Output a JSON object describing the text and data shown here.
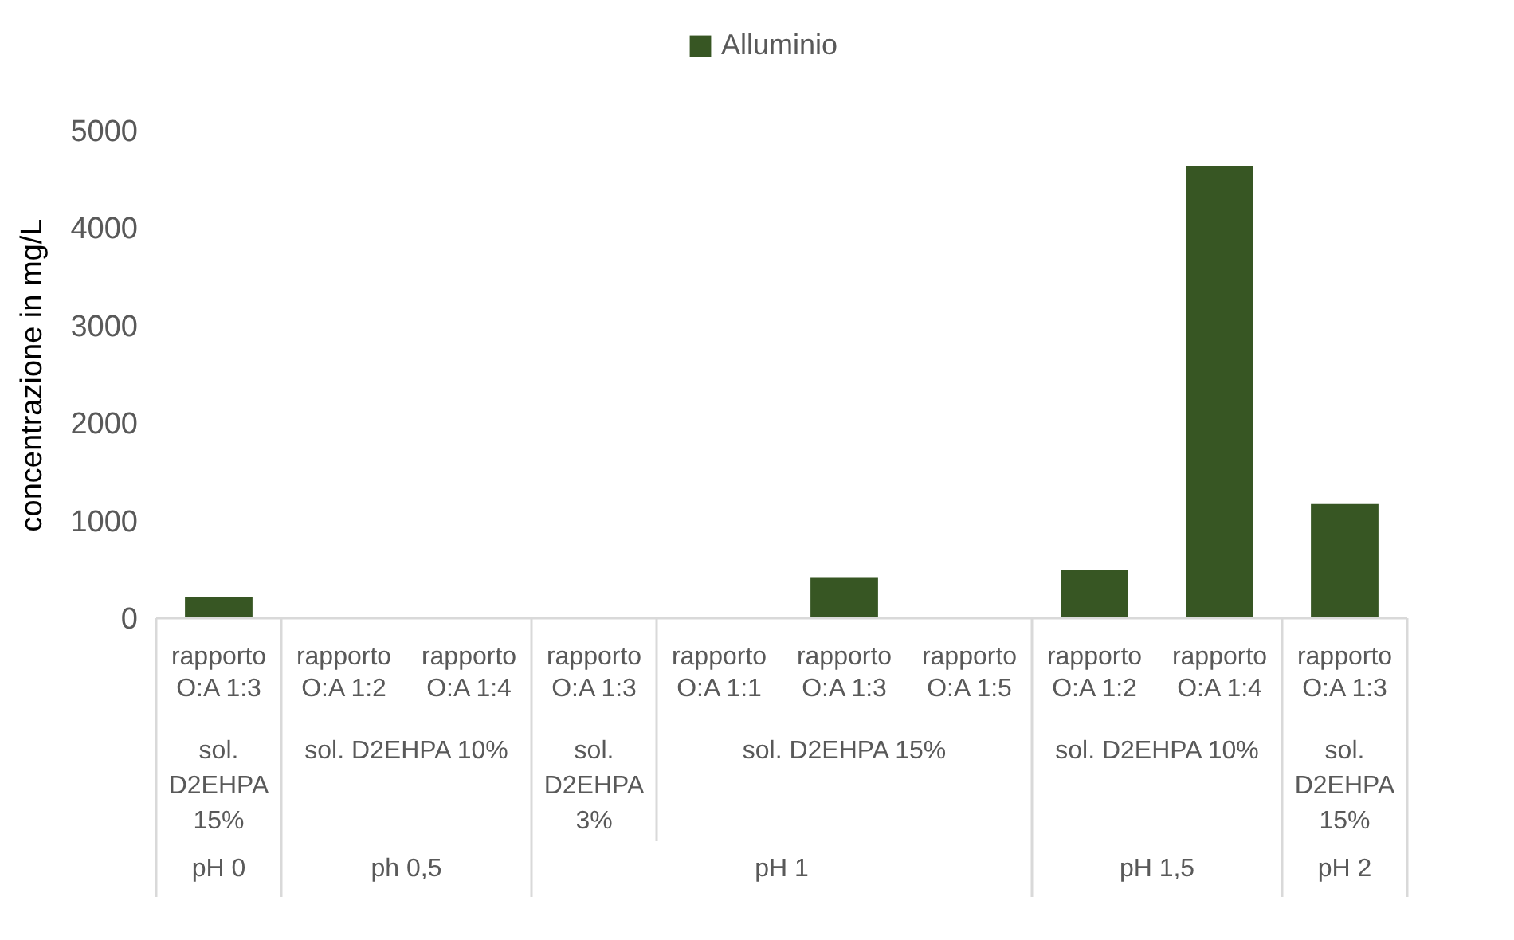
{
  "chart_data": {
    "type": "bar",
    "categories": [
      "rapporto O:A 1:3",
      "rapporto O:A 1:2",
      "rapporto O:A 1:4",
      "rapporto O:A 1:3",
      "rapporto O:A 1:1",
      "rapporto O:A 1:3",
      "rapporto O:A 1:5",
      "rapporto O:A 1:2",
      "rapporto O:A 1:4",
      "rapporto O:A 1:3"
    ],
    "series": [
      {
        "name": "Alluminio",
        "color": "#375623",
        "values": [
          220,
          0,
          0,
          0,
          0,
          420,
          0,
          490,
          4640,
          1170
        ]
      }
    ],
    "ylabel": "concentrazione in mg/L",
    "ylim": [
      0,
      5000
    ],
    "yticks": [
      0,
      1000,
      2000,
      3000,
      4000,
      5000
    ],
    "grid": false,
    "legend": "top",
    "annotations": [
      "sol. D2EHPA 15%",
      "sol. D2EHPA 10%",
      "sol. D2EHPA 3%",
      "sol. D2EHPA 15%",
      "sol. D2EHPA 10%",
      "sol. D2EHPA 15%",
      "pH 0",
      "ph 0,5",
      "pH 1",
      "pH 1,5",
      "pH 2"
    ]
  }
}
